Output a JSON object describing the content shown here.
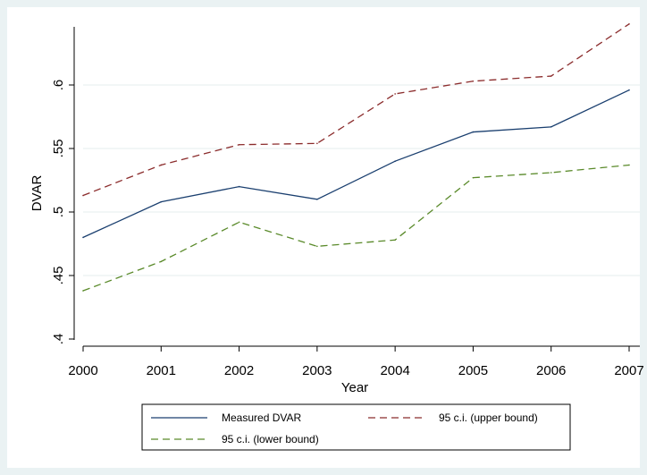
{
  "chart_data": {
    "type": "line",
    "xlabel": "Year",
    "ylabel": "DVAR",
    "x": [
      2000,
      2001,
      2002,
      2003,
      2004,
      2005,
      2006,
      2007
    ],
    "xlim": [
      2000,
      2007
    ],
    "ylim": [
      0.4,
      0.65
    ],
    "x_ticks": [
      "2000",
      "2001",
      "2002",
      "2003",
      "2004",
      "2005",
      "2006",
      "2007"
    ],
    "y_ticks": [
      {
        "value": 0.4,
        "label": ".4"
      },
      {
        "value": 0.45,
        "label": ".45"
      },
      {
        "value": 0.5,
        "label": ".5"
      },
      {
        "value": 0.55,
        "label": ".55"
      },
      {
        "value": 0.6,
        "label": ".6"
      }
    ],
    "grid": "horizontal",
    "legend_position": "bottom",
    "series": [
      {
        "name": "Measured DVAR",
        "color": "#1a3f6f",
        "dash": "solid",
        "values": [
          0.48,
          0.508,
          0.52,
          0.51,
          0.54,
          0.563,
          0.567,
          0.596
        ]
      },
      {
        "name": "95 c.i. (upper bound)",
        "color": "#8b2c2c",
        "dash": "dashed",
        "values": [
          0.513,
          0.537,
          0.553,
          0.554,
          0.593,
          0.603,
          0.607,
          0.648
        ]
      },
      {
        "name": "95 c.i. (lower bound)",
        "color": "#5a8a2a",
        "dash": "dashed",
        "values": [
          0.438,
          0.461,
          0.492,
          0.473,
          0.478,
          0.527,
          0.531,
          0.537
        ]
      }
    ]
  }
}
